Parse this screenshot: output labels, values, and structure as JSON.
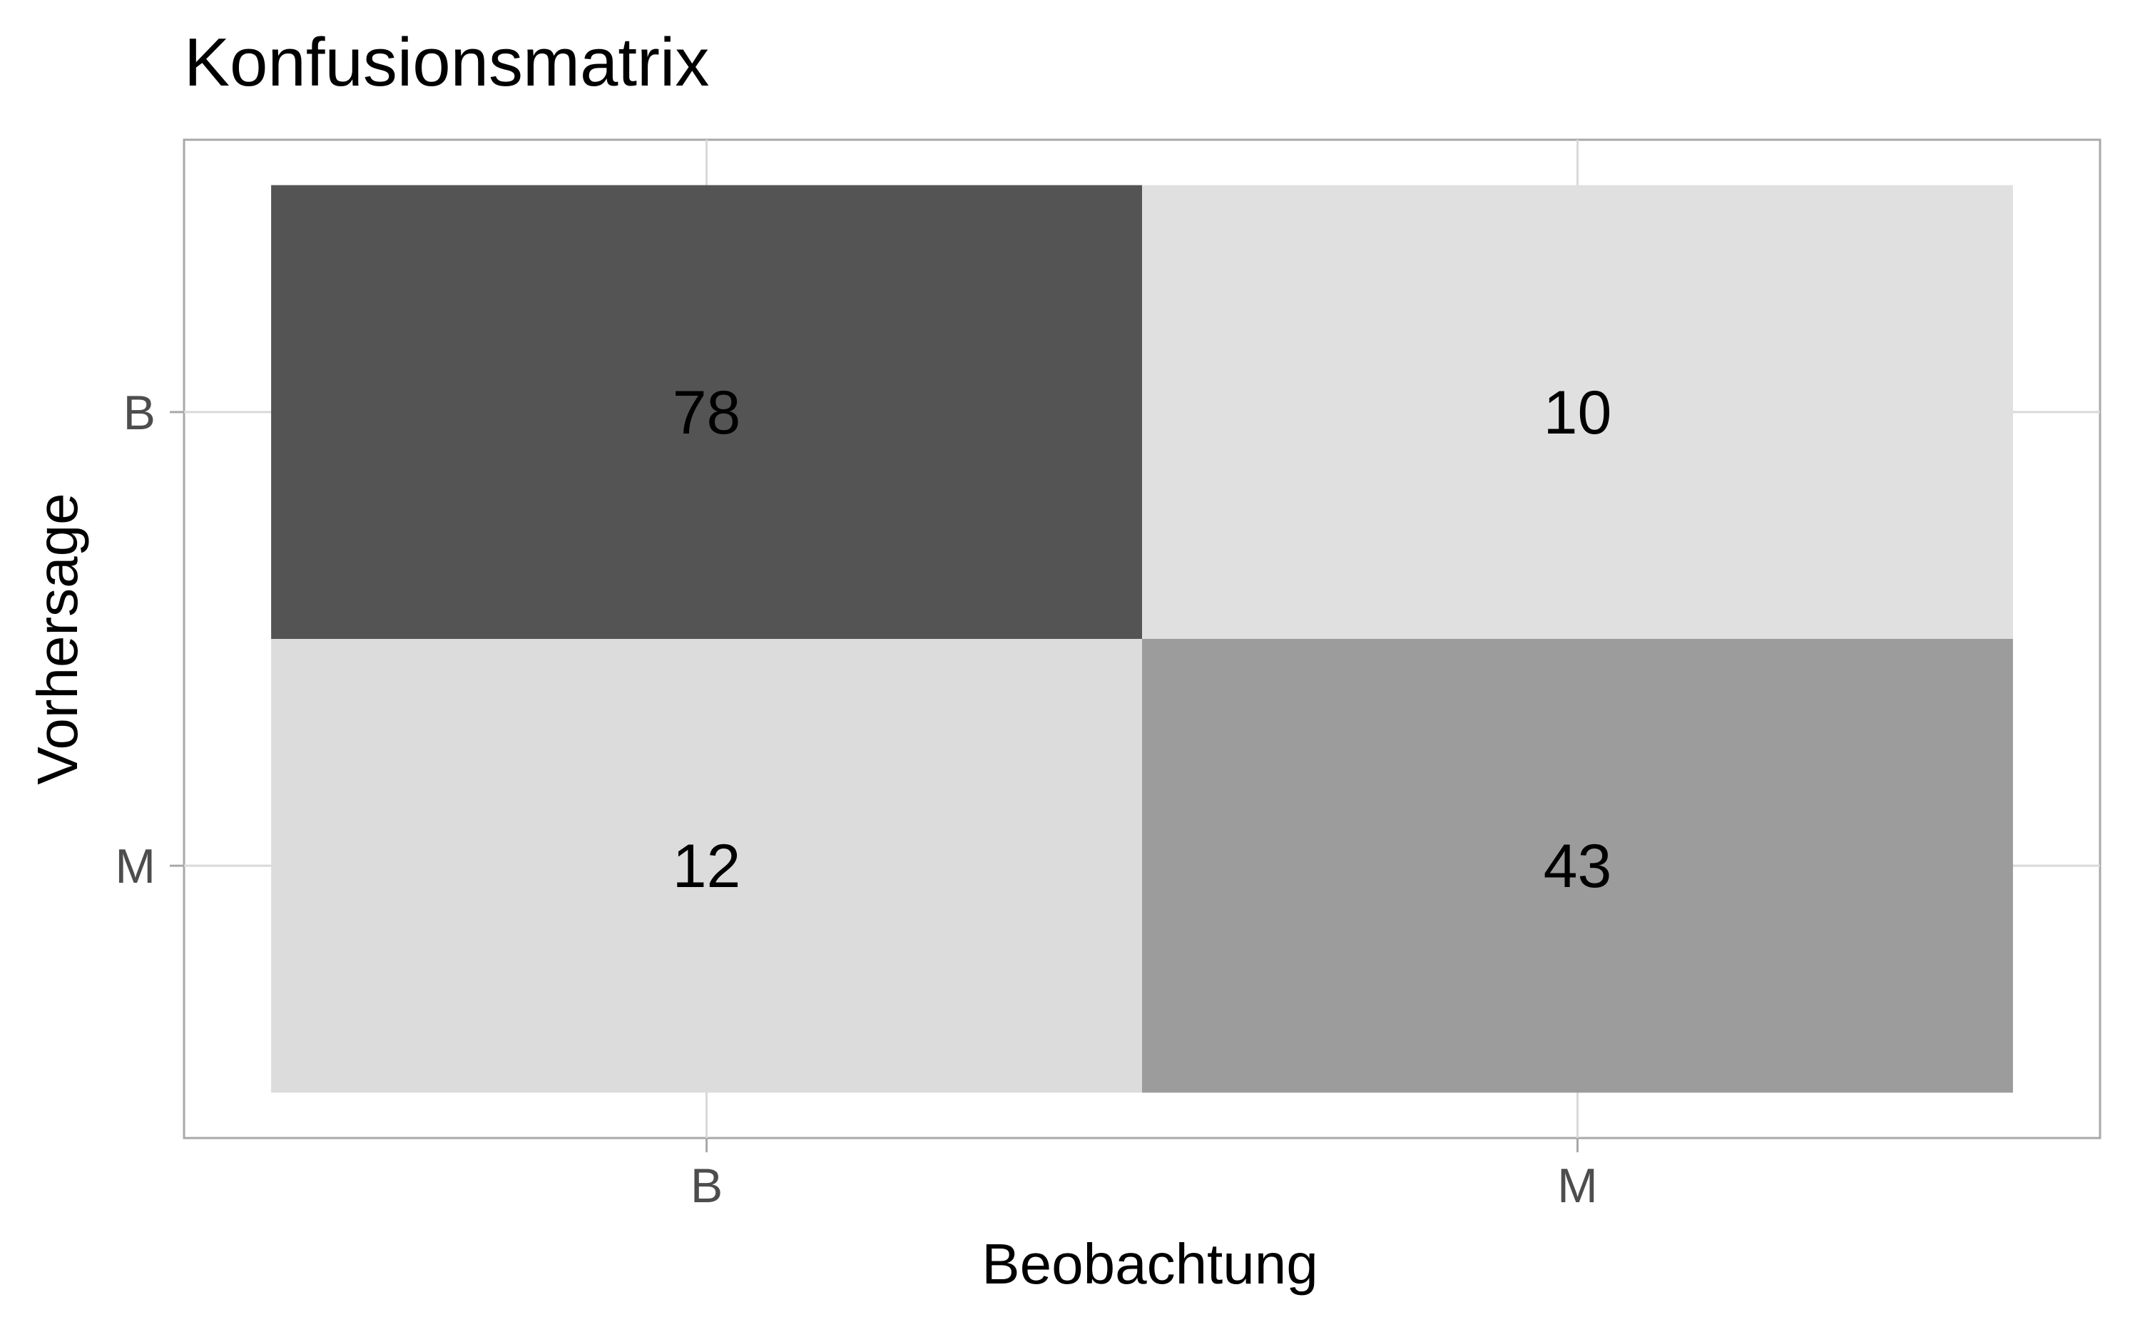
{
  "chart_data": {
    "type": "heatmap",
    "title": "Konfusionsmatrix",
    "xlabel": "Beobachtung",
    "ylabel": "Vorhersage",
    "x_categories": [
      "B",
      "M"
    ],
    "y_categories": [
      "B",
      "M"
    ],
    "cells": [
      {
        "x": "B",
        "y": "B",
        "value": 78
      },
      {
        "x": "M",
        "y": "B",
        "value": 10
      },
      {
        "x": "B",
        "y": "M",
        "value": 12
      },
      {
        "x": "M",
        "y": "M",
        "value": 43
      }
    ],
    "color_scale": {
      "low": "#e0e0e0",
      "high": "#545454"
    },
    "grid": true,
    "legend": "none"
  }
}
